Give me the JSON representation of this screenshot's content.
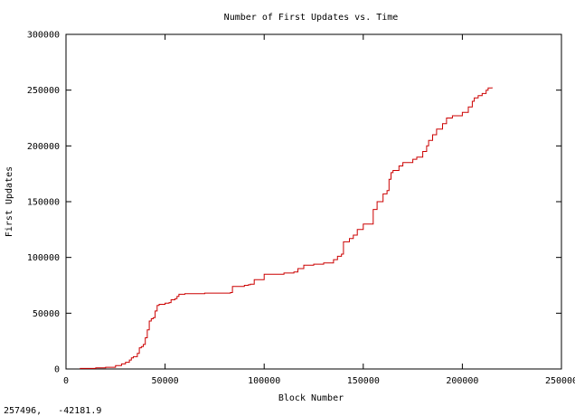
{
  "cursor_readout": "257496,   -42181.9",
  "chart_data": {
    "type": "line",
    "title": "Number of First Updates vs. Time",
    "xlabel": "Block Number",
    "ylabel": "First Updates",
    "xlim": [
      0,
      250000
    ],
    "ylim": [
      0,
      300000
    ],
    "xticks": [
      0,
      50000,
      100000,
      150000,
      200000,
      250000
    ],
    "yticks": [
      0,
      50000,
      100000,
      150000,
      200000,
      250000,
      300000
    ],
    "grid": false,
    "legend": "none",
    "series": [
      {
        "color": "#cc0000",
        "x": [
          7000,
          15000,
          20000,
          25000,
          28000,
          30000,
          32000,
          33000,
          34000,
          36000,
          37000,
          38000,
          39000,
          40000,
          41000,
          42000,
          43000,
          44000,
          45000,
          46000,
          47000,
          50000,
          52000,
          53000,
          55000,
          56000,
          57000,
          60000,
          70000,
          83000,
          84000,
          90000,
          92000,
          93000,
          95000,
          100000,
          110000,
          115000,
          117000,
          120000,
          125000,
          130000,
          135000,
          137000,
          139000,
          140000,
          143000,
          145000,
          147000,
          150000,
          155000,
          157000,
          160000,
          162000,
          163000,
          164000,
          165000,
          168000,
          170000,
          175000,
          177000,
          180000,
          182000,
          183000,
          185000,
          187000,
          190000,
          192000,
          195000,
          200000,
          203000,
          205000,
          206000,
          208000,
          210000,
          212000,
          213000,
          215000
        ],
        "y": [
          500,
          1000,
          1500,
          3000,
          4500,
          6000,
          8000,
          10000,
          11000,
          14000,
          19000,
          20000,
          22000,
          28000,
          35000,
          43000,
          45000,
          46000,
          52000,
          57000,
          58000,
          59000,
          59500,
          62000,
          63000,
          65000,
          67000,
          67500,
          68000,
          68500,
          74000,
          75000,
          75500,
          76000,
          80000,
          85000,
          86000,
          87000,
          90000,
          93000,
          94000,
          95000,
          98000,
          101000,
          103000,
          114000,
          117000,
          120000,
          125000,
          130000,
          143000,
          150000,
          157000,
          160000,
          170000,
          176000,
          178000,
          182000,
          185000,
          188000,
          190000,
          195000,
          200000,
          205000,
          210000,
          215000,
          220000,
          225000,
          227000,
          230000,
          235000,
          240000,
          243000,
          245000,
          247000,
          250000,
          252000,
          252500
        ]
      }
    ]
  }
}
